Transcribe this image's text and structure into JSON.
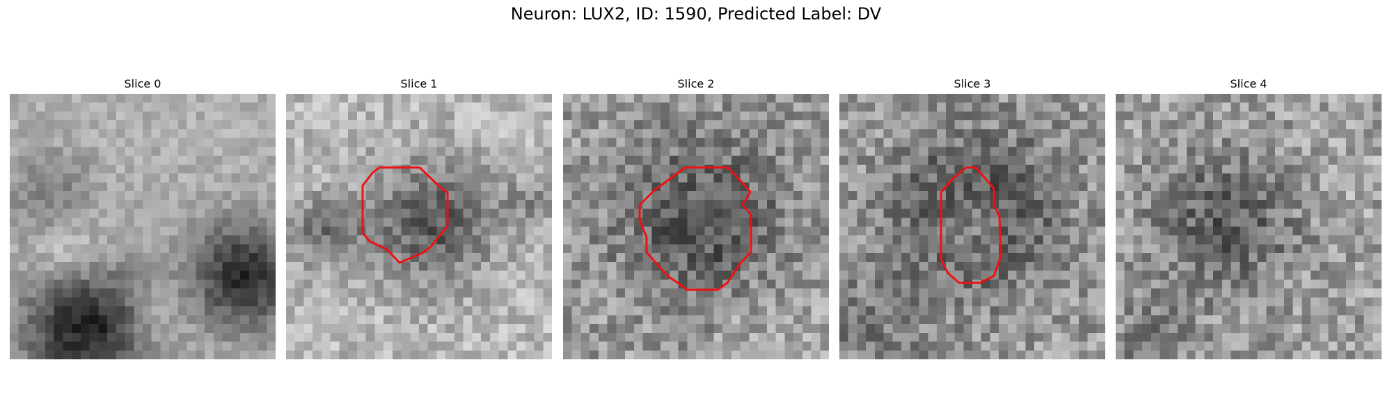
{
  "figure": {
    "title": "Neuron: LUX2, ID: 1590, Predicted Label: DV",
    "contour_color": "#ee1111",
    "panels": [
      {
        "title": "Slice 0",
        "has_contour": false
      },
      {
        "title": "Slice 1",
        "has_contour": true
      },
      {
        "title": "Slice 2",
        "has_contour": true
      },
      {
        "title": "Slice 3",
        "has_contour": true
      },
      {
        "title": "Slice 4",
        "has_contour": false
      }
    ]
  }
}
